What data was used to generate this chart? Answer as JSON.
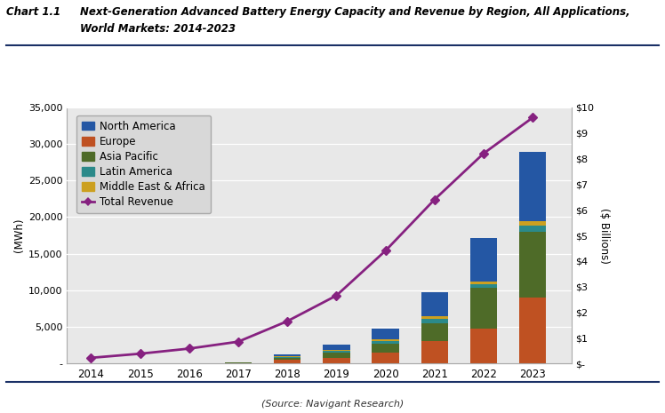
{
  "years": [
    2014,
    2015,
    2016,
    2017,
    2018,
    2019,
    2020,
    2021,
    2022,
    2023
  ],
  "north_america": [
    0,
    0,
    0,
    30,
    250,
    750,
    1500,
    3300,
    6000,
    9500
  ],
  "europe": [
    0,
    0,
    0,
    80,
    450,
    800,
    1500,
    3000,
    4800,
    9000
  ],
  "asia_pacific": [
    0,
    0,
    0,
    50,
    350,
    700,
    1200,
    2500,
    5500,
    9000
  ],
  "latin_america": [
    0,
    0,
    0,
    20,
    80,
    200,
    400,
    600,
    500,
    800
  ],
  "middle_east": [
    0,
    0,
    0,
    20,
    80,
    150,
    200,
    300,
    400,
    600
  ],
  "total_revenue": [
    0.22,
    0.38,
    0.58,
    0.85,
    1.65,
    2.65,
    4.4,
    6.4,
    8.2,
    9.6
  ],
  "colors": {
    "north_america": "#2457A4",
    "europe": "#BF5122",
    "asia_pacific": "#4E6B28",
    "latin_america": "#2B8A8A",
    "middle_east": "#CCA020",
    "revenue_line": "#862180"
  },
  "chart_label": "Chart 1.1",
  "title_line1": "Next-Generation Advanced Battery Energy Capacity and Revenue by Region, All Applications,",
  "title_line2": "World Markets: 2014-2023",
  "ylabel_left": "(MWh)",
  "ylabel_right": "($ Billions)",
  "source": "(Source: Navigant Research)",
  "ylim_left": [
    0,
    35000
  ],
  "ylim_right": [
    0,
    10
  ],
  "yticks_left": [
    0,
    5000,
    10000,
    15000,
    20000,
    25000,
    30000,
    35000
  ],
  "ytick_labels_left": [
    "-",
    "5,000",
    "10,000",
    "15,000",
    "20,000",
    "25,000",
    "30,000",
    "35,000"
  ],
  "yticks_right": [
    0,
    1,
    2,
    3,
    4,
    5,
    6,
    7,
    8,
    9,
    10
  ],
  "ytick_labels_right": [
    "$-",
    "$1",
    "$2",
    "$3",
    "$4",
    "$5",
    "$6",
    "$7",
    "$8",
    "$9",
    "$10"
  ],
  "plot_bg_color": "#e8e8e8",
  "fig_bg_color": "#ffffff",
  "grid_color": "#ffffff",
  "header_line_color": "#1a3066",
  "bar_width": 0.55
}
